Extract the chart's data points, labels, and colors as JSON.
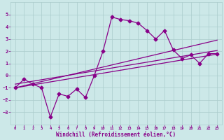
{
  "xlabel": "Windchill (Refroidissement éolien,°C)",
  "x_values": [
    0,
    1,
    2,
    3,
    4,
    5,
    6,
    7,
    8,
    9,
    10,
    11,
    12,
    13,
    14,
    15,
    16,
    17,
    18,
    19,
    20,
    21,
    22,
    23
  ],
  "y_main": [
    -1.0,
    -0.3,
    -0.7,
    -1.0,
    -3.4,
    -1.5,
    -1.7,
    -1.1,
    -1.8,
    0.0,
    2.0,
    4.8,
    4.6,
    4.5,
    4.3,
    3.7,
    3.0,
    3.7,
    2.1,
    1.4,
    1.7,
    1.0,
    1.8,
    1.8
  ],
  "y_linear1": [
    -1.0,
    -0.88,
    -0.76,
    -0.64,
    -0.52,
    -0.4,
    -0.28,
    -0.16,
    -0.04,
    0.08,
    0.2,
    0.32,
    0.44,
    0.56,
    0.68,
    0.8,
    0.92,
    1.04,
    1.16,
    1.28,
    1.4,
    1.52,
    1.64,
    1.76
  ],
  "y_linear2": [
    -0.7,
    -0.58,
    -0.46,
    -0.34,
    -0.22,
    -0.1,
    0.02,
    0.14,
    0.26,
    0.38,
    0.5,
    0.62,
    0.74,
    0.86,
    0.98,
    1.1,
    1.22,
    1.34,
    1.46,
    1.58,
    1.7,
    1.82,
    1.94,
    2.06
  ],
  "y_linear3": [
    -1.0,
    -0.83,
    -0.66,
    -0.49,
    -0.32,
    -0.15,
    0.02,
    0.19,
    0.36,
    0.53,
    0.7,
    0.87,
    1.04,
    1.21,
    1.38,
    1.55,
    1.72,
    1.89,
    2.06,
    2.23,
    2.4,
    2.57,
    2.74,
    2.91
  ],
  "line_color": "#880088",
  "bg_color": "#cce8e8",
  "grid_color": "#aacccc",
  "ylim": [
    -4,
    6
  ],
  "xlim": [
    -0.5,
    23.5
  ],
  "yticks": [
    -3,
    -2,
    -1,
    0,
    1,
    2,
    3,
    4,
    5
  ],
  "xticks": [
    0,
    1,
    2,
    3,
    4,
    5,
    6,
    7,
    8,
    9,
    10,
    11,
    12,
    13,
    14,
    15,
    16,
    17,
    18,
    19,
    20,
    21,
    22,
    23
  ],
  "marker": "D",
  "markersize": 2.5,
  "linewidth": 0.9,
  "font_color": "#880088",
  "xlabel_fontsize": 5.5,
  "tick_fontsize_x": 4.0,
  "tick_fontsize_y": 5.0
}
